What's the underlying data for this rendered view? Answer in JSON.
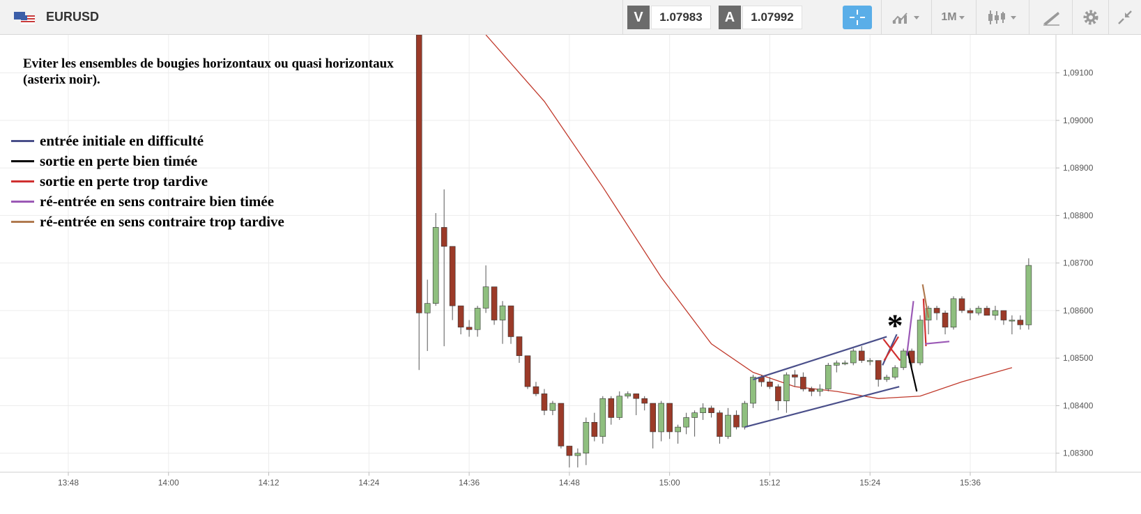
{
  "header": {
    "symbol": "EURUSD",
    "sell_label": "V",
    "sell_price": "1.07983",
    "buy_label": "A",
    "buy_price": "1.07992",
    "timeframe": "1M",
    "icons": [
      "flag-icon",
      "crosshair-icon",
      "chart-type-icon",
      "candles-icon",
      "drawing-tool-icon",
      "gear-icon",
      "collapse-icon"
    ]
  },
  "annotations": {
    "title": "Eviter les ensembles de bougies horizontaux ou quasi horizontaux (asterix noir).",
    "asterisk": "*"
  },
  "legend": [
    {
      "label": "entrée initiale en difficulté",
      "color": "#4a4f8a"
    },
    {
      "label": "sortie en perte bien timée",
      "color": "#000000"
    },
    {
      "label": "sortie en perte trop tardive",
      "color": "#d03030"
    },
    {
      "label": "ré-entrée en sens contraire bien timée",
      "color": "#9b59b6"
    },
    {
      "label": "ré-entrée en sens contraire trop tardive",
      "color": "#b07a50"
    }
  ],
  "chart_data": {
    "type": "candlestick",
    "x_ticks": [
      "13:48",
      "14:00",
      "14:12",
      "14:24",
      "14:36",
      "14:48",
      "15:00",
      "15:12",
      "15:24",
      "15:36"
    ],
    "y_ticks": [
      "1,08300",
      "1,08400",
      "1,08500",
      "1,08600",
      "1,08700",
      "1,08800",
      "1,08900",
      "1,09000",
      "1,09100"
    ],
    "ylim": [
      1.0826,
      1.0918
    ],
    "xlim_minutes": [
      825,
      941
    ],
    "up_color": "#8fbf7f",
    "down_color": "#9b3a28",
    "ma_color": "#c0392b",
    "candles": [
      {
        "t": 870,
        "o": 1.0918,
        "h": 1.0918,
        "l": 1.08475,
        "c": 1.08595
      },
      {
        "t": 871,
        "o": 1.08595,
        "h": 1.08665,
        "l": 1.08515,
        "c": 1.08615
      },
      {
        "t": 872,
        "o": 1.08615,
        "h": 1.08805,
        "l": 1.0861,
        "c": 1.08775
      },
      {
        "t": 873,
        "o": 1.08775,
        "h": 1.08855,
        "l": 1.08525,
        "c": 1.08735
      },
      {
        "t": 874,
        "o": 1.08735,
        "h": 1.08735,
        "l": 1.0858,
        "c": 1.0861
      },
      {
        "t": 875,
        "o": 1.0861,
        "h": 1.0861,
        "l": 1.0855,
        "c": 1.08565
      },
      {
        "t": 876,
        "o": 1.08565,
        "h": 1.0858,
        "l": 1.08545,
        "c": 1.0856
      },
      {
        "t": 877,
        "o": 1.0856,
        "h": 1.0861,
        "l": 1.08545,
        "c": 1.08605
      },
      {
        "t": 878,
        "o": 1.08605,
        "h": 1.08695,
        "l": 1.08595,
        "c": 1.0865
      },
      {
        "t": 879,
        "o": 1.0865,
        "h": 1.0865,
        "l": 1.0857,
        "c": 1.0858
      },
      {
        "t": 880,
        "o": 1.0858,
        "h": 1.0862,
        "l": 1.0853,
        "c": 1.0861
      },
      {
        "t": 881,
        "o": 1.0861,
        "h": 1.0861,
        "l": 1.0853,
        "c": 1.08545
      },
      {
        "t": 882,
        "o": 1.08545,
        "h": 1.08545,
        "l": 1.0849,
        "c": 1.08505
      },
      {
        "t": 883,
        "o": 1.08505,
        "h": 1.08505,
        "l": 1.08435,
        "c": 1.0844
      },
      {
        "t": 884,
        "o": 1.0844,
        "h": 1.0845,
        "l": 1.0842,
        "c": 1.08425
      },
      {
        "t": 885,
        "o": 1.08425,
        "h": 1.08435,
        "l": 1.0838,
        "c": 1.0839
      },
      {
        "t": 886,
        "o": 1.0839,
        "h": 1.0841,
        "l": 1.0838,
        "c": 1.08405
      },
      {
        "t": 887,
        "o": 1.08405,
        "h": 1.08405,
        "l": 1.0831,
        "c": 1.08315
      },
      {
        "t": 888,
        "o": 1.08315,
        "h": 1.08315,
        "l": 1.0827,
        "c": 1.08295
      },
      {
        "t": 889,
        "o": 1.08295,
        "h": 1.0831,
        "l": 1.0827,
        "c": 1.083
      },
      {
        "t": 890,
        "o": 1.083,
        "h": 1.08375,
        "l": 1.08275,
        "c": 1.08365
      },
      {
        "t": 891,
        "o": 1.08365,
        "h": 1.08385,
        "l": 1.08325,
        "c": 1.08335
      },
      {
        "t": 892,
        "o": 1.08335,
        "h": 1.0842,
        "l": 1.0832,
        "c": 1.08415
      },
      {
        "t": 893,
        "o": 1.08415,
        "h": 1.0842,
        "l": 1.0836,
        "c": 1.08375
      },
      {
        "t": 894,
        "o": 1.08375,
        "h": 1.0843,
        "l": 1.0837,
        "c": 1.0842
      },
      {
        "t": 895,
        "o": 1.0842,
        "h": 1.0843,
        "l": 1.08415,
        "c": 1.08425
      },
      {
        "t": 896,
        "o": 1.08425,
        "h": 1.08425,
        "l": 1.0838,
        "c": 1.08415
      },
      {
        "t": 897,
        "o": 1.08415,
        "h": 1.0842,
        "l": 1.0839,
        "c": 1.08405
      },
      {
        "t": 898,
        "o": 1.08405,
        "h": 1.08405,
        "l": 1.0831,
        "c": 1.08345
      },
      {
        "t": 899,
        "o": 1.08345,
        "h": 1.0841,
        "l": 1.08325,
        "c": 1.08405
      },
      {
        "t": 900,
        "o": 1.08405,
        "h": 1.08405,
        "l": 1.0833,
        "c": 1.08345
      },
      {
        "t": 901,
        "o": 1.08345,
        "h": 1.0836,
        "l": 1.0832,
        "c": 1.08355
      },
      {
        "t": 902,
        "o": 1.08355,
        "h": 1.08385,
        "l": 1.0834,
        "c": 1.08375
      },
      {
        "t": 903,
        "o": 1.08375,
        "h": 1.0839,
        "l": 1.08335,
        "c": 1.08385
      },
      {
        "t": 904,
        "o": 1.08385,
        "h": 1.08405,
        "l": 1.0837,
        "c": 1.08395
      },
      {
        "t": 905,
        "o": 1.08395,
        "h": 1.084,
        "l": 1.08375,
        "c": 1.08385
      },
      {
        "t": 906,
        "o": 1.08385,
        "h": 1.0839,
        "l": 1.0832,
        "c": 1.08335
      },
      {
        "t": 907,
        "o": 1.08335,
        "h": 1.08395,
        "l": 1.0833,
        "c": 1.0838
      },
      {
        "t": 908,
        "o": 1.0838,
        "h": 1.0839,
        "l": 1.0835,
        "c": 1.08355
      },
      {
        "t": 909,
        "o": 1.08355,
        "h": 1.0841,
        "l": 1.0835,
        "c": 1.08405
      },
      {
        "t": 910,
        "o": 1.08405,
        "h": 1.08465,
        "l": 1.08395,
        "c": 1.0846
      },
      {
        "t": 911,
        "o": 1.0846,
        "h": 1.08465,
        "l": 1.0844,
        "c": 1.0845
      },
      {
        "t": 912,
        "o": 1.0845,
        "h": 1.0846,
        "l": 1.08435,
        "c": 1.0844
      },
      {
        "t": 913,
        "o": 1.0844,
        "h": 1.08445,
        "l": 1.0839,
        "c": 1.0841
      },
      {
        "t": 914,
        "o": 1.0841,
        "h": 1.0847,
        "l": 1.08385,
        "c": 1.08465
      },
      {
        "t": 915,
        "o": 1.08465,
        "h": 1.08475,
        "l": 1.0844,
        "c": 1.0846
      },
      {
        "t": 916,
        "o": 1.0846,
        "h": 1.0847,
        "l": 1.0843,
        "c": 1.08435
      },
      {
        "t": 917,
        "o": 1.08435,
        "h": 1.0844,
        "l": 1.0842,
        "c": 1.0843
      },
      {
        "t": 918,
        "o": 1.0843,
        "h": 1.08445,
        "l": 1.0842,
        "c": 1.08435
      },
      {
        "t": 919,
        "o": 1.08435,
        "h": 1.0849,
        "l": 1.0843,
        "c": 1.08485
      },
      {
        "t": 920,
        "o": 1.08485,
        "h": 1.08495,
        "l": 1.0847,
        "c": 1.0849
      },
      {
        "t": 921,
        "o": 1.0849,
        "h": 1.08495,
        "l": 1.08485,
        "c": 1.0849
      },
      {
        "t": 922,
        "o": 1.0849,
        "h": 1.0852,
        "l": 1.08485,
        "c": 1.08515
      },
      {
        "t": 923,
        "o": 1.08515,
        "h": 1.08525,
        "l": 1.0849,
        "c": 1.08495
      },
      {
        "t": 924,
        "o": 1.08495,
        "h": 1.085,
        "l": 1.08485,
        "c": 1.08495
      },
      {
        "t": 925,
        "o": 1.08495,
        "h": 1.08495,
        "l": 1.0844,
        "c": 1.08455
      },
      {
        "t": 926,
        "o": 1.08455,
        "h": 1.08465,
        "l": 1.0845,
        "c": 1.0846
      },
      {
        "t": 927,
        "o": 1.0846,
        "h": 1.08485,
        "l": 1.08455,
        "c": 1.0848
      },
      {
        "t": 928,
        "o": 1.0848,
        "h": 1.0852,
        "l": 1.08475,
        "c": 1.08515
      },
      {
        "t": 929,
        "o": 1.08515,
        "h": 1.0852,
        "l": 1.0848,
        "c": 1.0849
      },
      {
        "t": 930,
        "o": 1.0849,
        "h": 1.0859,
        "l": 1.08485,
        "c": 1.0858
      },
      {
        "t": 931,
        "o": 1.0858,
        "h": 1.0861,
        "l": 1.0855,
        "c": 1.08605
      },
      {
        "t": 932,
        "o": 1.08605,
        "h": 1.0861,
        "l": 1.0858,
        "c": 1.08595
      },
      {
        "t": 933,
        "o": 1.08595,
        "h": 1.086,
        "l": 1.0855,
        "c": 1.08565
      },
      {
        "t": 934,
        "o": 1.08565,
        "h": 1.0863,
        "l": 1.0856,
        "c": 1.08625
      },
      {
        "t": 935,
        "o": 1.08625,
        "h": 1.0863,
        "l": 1.08595,
        "c": 1.086
      },
      {
        "t": 936,
        "o": 1.086,
        "h": 1.08605,
        "l": 1.0858,
        "c": 1.08595
      },
      {
        "t": 937,
        "o": 1.08595,
        "h": 1.0861,
        "l": 1.0859,
        "c": 1.08605
      },
      {
        "t": 938,
        "o": 1.08605,
        "h": 1.0861,
        "l": 1.0859,
        "c": 1.0859
      },
      {
        "t": 939,
        "o": 1.0859,
        "h": 1.0861,
        "l": 1.0858,
        "c": 1.086
      },
      {
        "t": 940,
        "o": 1.086,
        "h": 1.086,
        "l": 1.0857,
        "c": 1.0858
      },
      {
        "t": 941,
        "o": 1.0858,
        "h": 1.0859,
        "l": 1.0855,
        "c": 1.0858
      },
      {
        "t": 942,
        "o": 1.0858,
        "h": 1.0859,
        "l": 1.0856,
        "c": 1.0857
      },
      {
        "t": 943,
        "o": 1.0857,
        "h": 1.0871,
        "l": 1.0856,
        "c": 1.08695
      }
    ],
    "moving_average": [
      {
        "t": 878,
        "v": 1.0918
      },
      {
        "t": 885,
        "v": 1.0904
      },
      {
        "t": 892,
        "v": 1.0886
      },
      {
        "t": 899,
        "v": 1.0867
      },
      {
        "t": 905,
        "v": 1.0853
      },
      {
        "t": 910,
        "v": 1.0847
      },
      {
        "t": 915,
        "v": 1.0844
      },
      {
        "t": 920,
        "v": 1.0843
      },
      {
        "t": 925,
        "v": 1.08415
      },
      {
        "t": 930,
        "v": 1.0842
      },
      {
        "t": 935,
        "v": 1.0845
      },
      {
        "t": 941,
        "v": 1.0848
      }
    ],
    "drawings": [
      {
        "name": "channel-upper-line",
        "color": "#4a4f8a",
        "points": [
          [
            910,
            1.08455
          ],
          [
            926,
            1.08545
          ]
        ]
      },
      {
        "name": "channel-lower-line",
        "color": "#4a4f8a",
        "points": [
          [
            909,
            1.08355
          ],
          [
            927.5,
            1.0844
          ]
        ]
      },
      {
        "name": "initial-entry-line",
        "color": "#4a4f8a",
        "points": [
          [
            925.5,
            1.08485
          ],
          [
            927.2,
            1.0855
          ]
        ]
      },
      {
        "name": "cross-line-a",
        "color": "#d03030",
        "points": [
          [
            925.6,
            1.0854
          ],
          [
            927.6,
            1.08495
          ]
        ]
      },
      {
        "name": "cross-line-b",
        "color": "#d03030",
        "points": [
          [
            925.7,
            1.08495
          ],
          [
            927.4,
            1.08545
          ]
        ]
      },
      {
        "name": "well-timed-exit-line",
        "color": "#000000",
        "points": [
          [
            928.5,
            1.08515
          ],
          [
            929.6,
            1.0843
          ]
        ]
      },
      {
        "name": "late-exit-line",
        "color": "#d03030",
        "points": [
          [
            930.4,
            1.08625
          ],
          [
            930.7,
            1.08525
          ]
        ]
      },
      {
        "name": "well-timed-reentry-line",
        "color": "#9b59b6",
        "points": [
          [
            928.4,
            1.08505
          ],
          [
            929.2,
            1.0862
          ]
        ]
      },
      {
        "name": "well-timed-reentry-flat-line",
        "color": "#9b59b6",
        "points": [
          [
            930.6,
            1.0853
          ],
          [
            933.5,
            1.08535
          ]
        ]
      },
      {
        "name": "late-reentry-line",
        "color": "#b07a50",
        "points": [
          [
            930.3,
            1.08655
          ],
          [
            931.0,
            1.08585
          ]
        ]
      }
    ],
    "asterisk_at": [
      927,
      1.0857
    ]
  }
}
